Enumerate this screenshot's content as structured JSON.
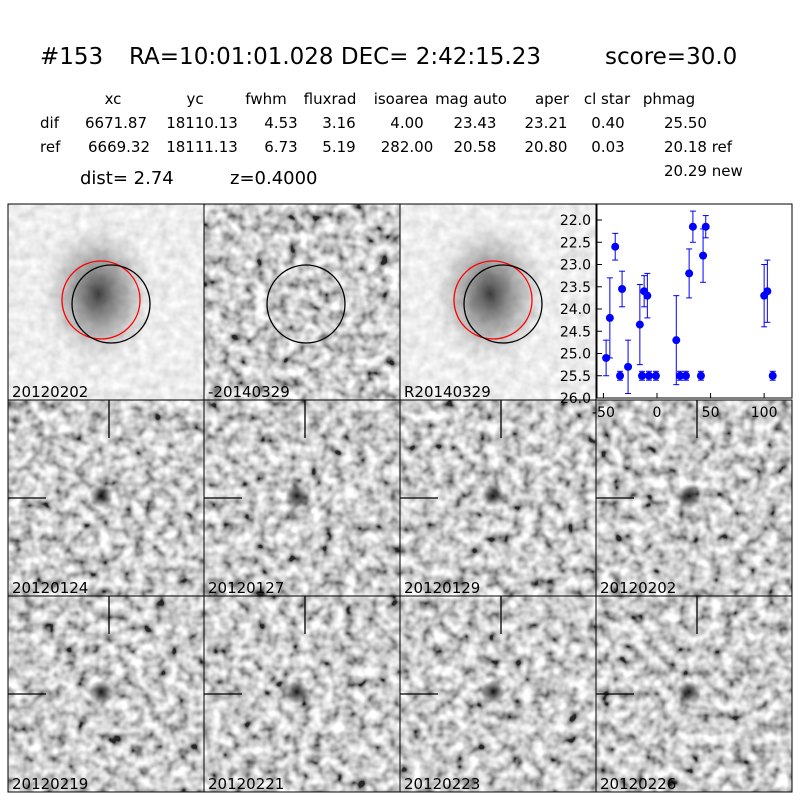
{
  "header": {
    "id": "#153",
    "coords": "RA=10:01:01.028 DEC= 2:42:15.23",
    "score": "score=30.0"
  },
  "table": {
    "columns": [
      "xc",
      "yc",
      "fwhm",
      "fluxrad",
      "isoarea",
      "mag auto",
      "aper",
      "cl star",
      "phmag"
    ],
    "rows": [
      [
        "dif",
        "6671.87",
        "18110.13",
        "4.53",
        "3.16",
        "4.00",
        "23.43",
        "23.21",
        "0.40",
        "25.50"
      ],
      [
        "ref",
        "6669.32",
        "18111.13",
        "6.73",
        "5.19",
        "282.00",
        "20.58",
        "20.80",
        "0.03",
        "20.18 ref"
      ]
    ],
    "extra": "20.29 new"
  },
  "dist": "dist=  2.74",
  "redshift": "z=0.4000",
  "stamps": [
    {
      "label": "20120202",
      "color": "#000000"
    },
    {
      "label": "-20140329",
      "color": "#000000"
    },
    {
      "label": "R20140329",
      "color": "#000000"
    },
    {
      "label": "20120124",
      "color": "#000000"
    },
    {
      "label": "20120127",
      "color": "#000000"
    },
    {
      "label": "20120129",
      "color": "#000000"
    },
    {
      "label": "20120202",
      "color": "#ff0000"
    },
    {
      "label": "20120219",
      "color": "#000000"
    },
    {
      "label": "20120221",
      "color": "#000000"
    },
    {
      "label": "20120223",
      "color": "#000000"
    },
    {
      "label": "20120226",
      "color": "#000000"
    }
  ],
  "chart_data": {
    "type": "scatter",
    "color": "#0000ff",
    "x": [
      -47.5,
      -44,
      -39,
      -34.5,
      -32.6,
      -27,
      -16,
      -14,
      -12,
      -9,
      -7.5,
      -1,
      18,
      21.5,
      27,
      30,
      33.5,
      41,
      43,
      45.5,
      100,
      103,
      108
    ],
    "values": [
      25.1,
      24.2,
      22.6,
      25.5,
      23.55,
      25.3,
      24.35,
      25.5,
      23.6,
      23.7,
      25.5,
      25.5,
      24.7,
      25.5,
      25.5,
      23.2,
      22.15,
      25.5,
      22.8,
      22.15,
      23.7,
      23.6,
      25.5
    ],
    "errors": [
      0.4,
      0.9,
      0.3,
      0.1,
      0.4,
      0.6,
      0.9,
      0.1,
      0.35,
      0.5,
      0.1,
      0.1,
      1.0,
      0.1,
      0.1,
      0.55,
      0.35,
      0.1,
      0.6,
      0.25,
      0.7,
      0.7,
      0.1
    ],
    "xlim": [
      -56,
      126
    ],
    "ylim": [
      26,
      21.64
    ],
    "xticks": [
      -50,
      0,
      50,
      100
    ],
    "yticks": [
      {
        "value": 22,
        "label": "22.0"
      },
      {
        "value": 22.5,
        "label": "22.5"
      },
      {
        "value": 23,
        "label": "23.0"
      },
      {
        "value": 23.5,
        "label": "23.5"
      },
      {
        "value": 24,
        "label": "24.0"
      },
      {
        "value": 24.5,
        "label": "24.5"
      },
      {
        "value": 25,
        "label": "25.0"
      },
      {
        "value": 25.5,
        "label": "25.5"
      },
      {
        "value": 26,
        "label": "26.0"
      }
    ]
  }
}
